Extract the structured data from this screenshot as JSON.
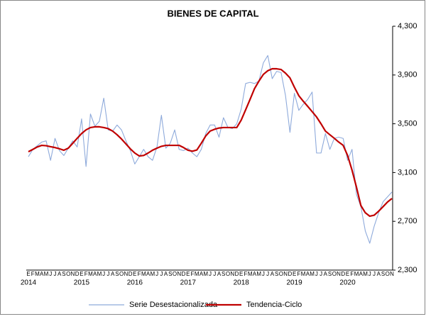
{
  "chart_data": {
    "type": "line",
    "title": "BIENES DE CAPITAL",
    "categories": [
      "E",
      "F",
      "M",
      "A",
      "M",
      "J",
      "J",
      "A",
      "S",
      "O",
      "N",
      "D",
      "E",
      "F",
      "M",
      "A",
      "M",
      "J",
      "J",
      "A",
      "S",
      "O",
      "N",
      "D",
      "E",
      "F",
      "M",
      "A",
      "M",
      "J",
      "J",
      "A",
      "S",
      "O",
      "N",
      "D",
      "E",
      "F",
      "M",
      "A",
      "M",
      "J",
      "J",
      "A",
      "S",
      "O",
      "N",
      "D",
      "E",
      "F",
      "M",
      "A",
      "M",
      "J",
      "J",
      "A",
      "S",
      "O",
      "N",
      "D",
      "E",
      "F",
      "M",
      "A",
      "M",
      "J",
      "J",
      "A",
      "S",
      "O",
      "N",
      "D",
      "E",
      "F",
      "M",
      "A",
      "M",
      "J",
      "J",
      "A",
      "S",
      "O",
      "N"
    ],
    "year_labels": [
      "2014",
      "2015",
      "2016",
      "2017",
      "2018",
      "2019",
      "2020"
    ],
    "series": [
      {
        "name": "Serie Desestacionalizada",
        "color": "#8eaadb",
        "values": [
          3230,
          3290,
          3320,
          3350,
          3360,
          3200,
          3380,
          3280,
          3240,
          3300,
          3360,
          3310,
          3540,
          3150,
          3580,
          3480,
          3520,
          3710,
          3450,
          3440,
          3490,
          3450,
          3360,
          3280,
          3170,
          3230,
          3290,
          3230,
          3200,
          3310,
          3570,
          3300,
          3340,
          3450,
          3290,
          3280,
          3300,
          3260,
          3230,
          3290,
          3420,
          3490,
          3490,
          3390,
          3550,
          3470,
          3460,
          3500,
          3620,
          3830,
          3840,
          3830,
          3850,
          4000,
          4060,
          3870,
          3930,
          3920,
          3730,
          3430,
          3750,
          3610,
          3660,
          3700,
          3760,
          3260,
          3260,
          3420,
          3290,
          3380,
          3390,
          3380,
          3200,
          3290,
          2920,
          2820,
          2620,
          2520,
          2660,
          2770,
          2860,
          2900,
          2940
        ]
      },
      {
        "name": "Tendencia-Ciclo",
        "color": "#c00000",
        "values": [
          3271,
          3290,
          3310,
          3323,
          3320,
          3312,
          3305,
          3295,
          3283,
          3300,
          3340,
          3381,
          3420,
          3450,
          3469,
          3475,
          3475,
          3469,
          3460,
          3440,
          3410,
          3375,
          3335,
          3294,
          3260,
          3236,
          3240,
          3260,
          3283,
          3300,
          3315,
          3323,
          3323,
          3323,
          3323,
          3305,
          3283,
          3275,
          3285,
          3340,
          3400,
          3440,
          3455,
          3465,
          3469,
          3469,
          3469,
          3469,
          3530,
          3614,
          3700,
          3788,
          3850,
          3905,
          3935,
          3951,
          3951,
          3945,
          3915,
          3876,
          3800,
          3730,
          3685,
          3643,
          3600,
          3556,
          3500,
          3440,
          3410,
          3381,
          3350,
          3323,
          3240,
          3120,
          2980,
          2829,
          2770,
          2742,
          2750,
          2783,
          2820,
          2858,
          2887
        ]
      }
    ],
    "ylim": [
      2300,
      4300
    ],
    "yticks": [
      {
        "value": 2300,
        "label": "2,300"
      },
      {
        "value": 2700,
        "label": "2,700"
      },
      {
        "value": 3100,
        "label": "3,100"
      },
      {
        "value": 3500,
        "label": "3,500"
      },
      {
        "value": 3900,
        "label": "3,900"
      },
      {
        "value": 4300,
        "label": "4,300"
      }
    ],
    "y_axis_side": "right",
    "grid": false,
    "legend": "bottom"
  }
}
